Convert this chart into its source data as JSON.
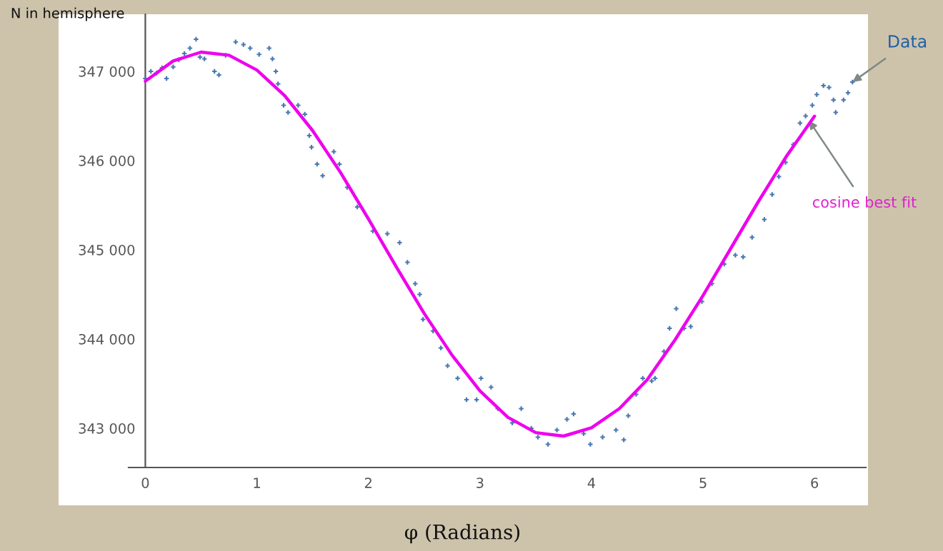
{
  "chart_data": {
    "type": "scatter",
    "xlabel": "φ (Radians)",
    "ylabel": "N in hemisphere",
    "xlim": [
      -0.15,
      6.46
    ],
    "ylim": [
      342560,
      347640
    ],
    "xticks": [
      0,
      1,
      2,
      3,
      4,
      5,
      6
    ],
    "yticks": [
      {
        "value": 343000,
        "label": "343 000"
      },
      {
        "value": 344000,
        "label": "344 000"
      },
      {
        "value": 345000,
        "label": "345 000"
      },
      {
        "value": 346000,
        "label": "346 000"
      },
      {
        "value": 347000,
        "label": "347 000"
      }
    ],
    "grid": false,
    "legend": false,
    "series": [
      {
        "marker": "cross",
        "color": "#4a79b0",
        "x": [
          0.0,
          0.05,
          0.1,
          0.15,
          0.19,
          0.25,
          0.3,
          0.35,
          0.4,
          0.455,
          0.49,
          0.53,
          0.62,
          0.66,
          0.72,
          0.81,
          0.88,
          0.94,
          1.02,
          1.11,
          1.14,
          1.17,
          1.19,
          1.24,
          1.28,
          1.37,
          1.43,
          1.47,
          1.49,
          1.54,
          1.59,
          1.69,
          1.74,
          1.81,
          1.9,
          2.04,
          2.17,
          2.28,
          2.35,
          2.42,
          2.46,
          2.49,
          2.58,
          2.65,
          2.71,
          2.8,
          2.88,
          2.97,
          3.01,
          3.1,
          3.16,
          3.29,
          3.37,
          3.46,
          3.52,
          3.61,
          3.69,
          3.78,
          3.84,
          3.93,
          3.99,
          4.1,
          4.22,
          4.29,
          4.33,
          4.4,
          4.46,
          4.54,
          4.57,
          4.65,
          4.7,
          4.76,
          4.83,
          4.89,
          4.99,
          5.08,
          5.19,
          5.29,
          5.36,
          5.44,
          5.55,
          5.62,
          5.68,
          5.74,
          5.81,
          5.87,
          5.92,
          5.98,
          6.02,
          6.08,
          6.13,
          6.17,
          6.19,
          6.26,
          6.3,
          6.34
        ],
        "values": [
          346920,
          347000,
          346980,
          347040,
          346920,
          347050,
          347130,
          347200,
          347260,
          347360,
          347160,
          347140,
          347000,
          346960,
          347180,
          347330,
          347300,
          347260,
          347190,
          347260,
          347140,
          347000,
          346860,
          346620,
          346540,
          346620,
          346520,
          346280,
          346150,
          345960,
          345830,
          346100,
          345960,
          345700,
          345480,
          345210,
          345180,
          345080,
          344860,
          344620,
          344500,
          344220,
          344090,
          343900,
          343700,
          343560,
          343320,
          343320,
          343560,
          343460,
          343220,
          343060,
          343220,
          343000,
          342900,
          342820,
          342980,
          343100,
          343160,
          342940,
          342820,
          342900,
          342980,
          342870,
          343140,
          343380,
          343560,
          343530,
          343560,
          343860,
          344120,
          344340,
          344120,
          344140,
          344420,
          344620,
          344840,
          344940,
          344920,
          345140,
          345340,
          345620,
          345820,
          345980,
          346180,
          346420,
          346500,
          346620,
          346740,
          346840,
          346820,
          346680,
          346540,
          346680,
          346760,
          346880
        ]
      },
      {
        "type": "line",
        "color": "#ee00ee",
        "line_style": "solid",
        "x": [
          0,
          0.25,
          0.5,
          0.75,
          1.0,
          1.25,
          1.5,
          1.75,
          2.0,
          2.25,
          2.5,
          2.75,
          3.0,
          3.25,
          3.5,
          3.75,
          4.0,
          4.25,
          4.5,
          4.75,
          5.0,
          5.25,
          5.5,
          5.75,
          6.0
        ],
        "values": [
          346890,
          347117,
          347216,
          347181,
          347015,
          346727,
          346336,
          345867,
          345347,
          344809,
          344287,
          343819,
          343419,
          343123,
          342951,
          342912,
          343005,
          343220,
          343544,
          343992,
          344487,
          345018,
          345548,
          346052,
          346498
        ]
      }
    ],
    "annotations": [
      {
        "text": "Data",
        "x": 6.34,
        "y": 346880
      },
      {
        "text": "cosine best fit",
        "x": 5.95,
        "y": 346450
      }
    ]
  }
}
